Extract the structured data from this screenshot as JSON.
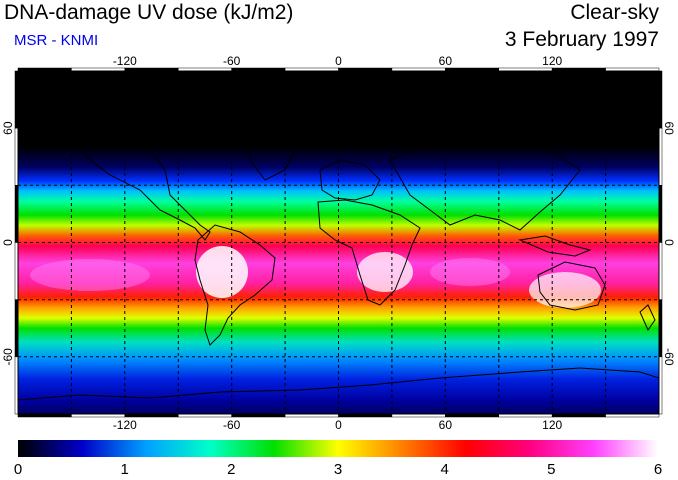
{
  "header": {
    "title": "DNA-damage UV dose (kJ/m2)",
    "subtitle": "MSR - KNMI",
    "condition": "Clear-sky",
    "date": "3 February 1997"
  },
  "map": {
    "longitude_ticks": [
      "-120",
      "-60",
      "0",
      "60",
      "120"
    ],
    "latitude_ticks": [
      "60",
      "0",
      "-60"
    ],
    "longitude_values": [
      -120,
      -60,
      0,
      60,
      120
    ],
    "latitude_values": [
      60,
      0,
      -60
    ],
    "extent": {
      "lon_min": -180,
      "lon_max": 180,
      "lat_min": -90,
      "lat_max": 90
    },
    "gridline_spacing_deg": 30
  },
  "colorbar": {
    "labels": [
      "0",
      "1",
      "2",
      "3",
      "4",
      "5",
      "6"
    ],
    "min": 0,
    "max": 6,
    "colors": [
      "#000000",
      "#0000c8",
      "#00a0ff",
      "#00ffc8",
      "#00e000",
      "#ffff00",
      "#ff8000",
      "#ff0000",
      "#ff0080",
      "#ff40ff",
      "#ffffff"
    ]
  }
}
